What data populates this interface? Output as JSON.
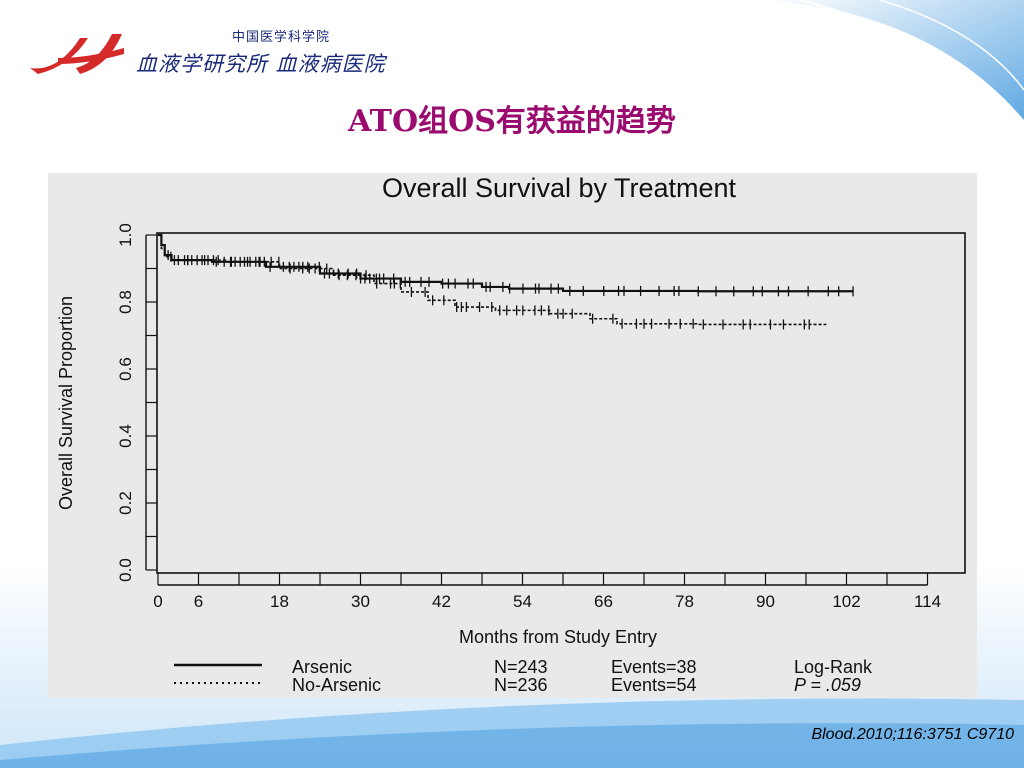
{
  "header": {
    "logo_line1": "中国医学科学院",
    "logo_line2": "血液学研究所 血液病医院"
  },
  "slide": {
    "title": "ATO组OS有获益的趋势",
    "citation": "Blood.2010;116:3751 C9710"
  },
  "colors": {
    "title": "#9b0a6e",
    "logo_red": "#d42a2a",
    "logo_text": "#1a2a7a",
    "chart_panel": "#e9e9e9",
    "bg_blue": "#5aa8e6"
  },
  "chart_data": {
    "type": "line",
    "title": "Overall Survival by Treatment",
    "xlabel": "Months from Study Entry",
    "ylabel": "Overall Survival Proportion",
    "xlim": [
      0,
      114
    ],
    "ylim": [
      0,
      1
    ],
    "xticks": [
      "0",
      "6",
      "18",
      "30",
      "42",
      "54",
      "66",
      "78",
      "90",
      "102",
      "114"
    ],
    "yticks": [
      "0.0",
      "0.2",
      "0.4",
      "0.6",
      "0.8",
      "1.0"
    ],
    "grid": false,
    "legend_position": "bottom",
    "series": [
      {
        "name": "Arsenic",
        "style": "solid",
        "n": "N=243",
        "events": "Events=38",
        "points": [
          [
            0,
            1.0
          ],
          [
            0.5,
            0.97
          ],
          [
            1,
            0.94
          ],
          [
            2,
            0.925
          ],
          [
            8,
            0.92
          ],
          [
            16,
            0.905
          ],
          [
            24,
            0.885
          ],
          [
            30,
            0.87
          ],
          [
            36,
            0.86
          ],
          [
            42,
            0.855
          ],
          [
            48,
            0.845
          ],
          [
            52,
            0.84
          ],
          [
            60,
            0.833
          ],
          [
            80,
            0.832
          ],
          [
            103,
            0.832
          ]
        ]
      },
      {
        "name": "No-Arsenic",
        "style": "dotted",
        "n": "N=236",
        "events": "Events=54",
        "points": [
          [
            0,
            1.0
          ],
          [
            0.5,
            0.96
          ],
          [
            1,
            0.935
          ],
          [
            2,
            0.925
          ],
          [
            10,
            0.92
          ],
          [
            18,
            0.9
          ],
          [
            26,
            0.88
          ],
          [
            32,
            0.855
          ],
          [
            36,
            0.83
          ],
          [
            40,
            0.805
          ],
          [
            44,
            0.785
          ],
          [
            50,
            0.775
          ],
          [
            58,
            0.765
          ],
          [
            64,
            0.75
          ],
          [
            68,
            0.735
          ],
          [
            80,
            0.733
          ],
          [
            99,
            0.733
          ]
        ]
      }
    ],
    "test": {
      "label": "Log-Rank",
      "p_value": "P = .059"
    }
  }
}
